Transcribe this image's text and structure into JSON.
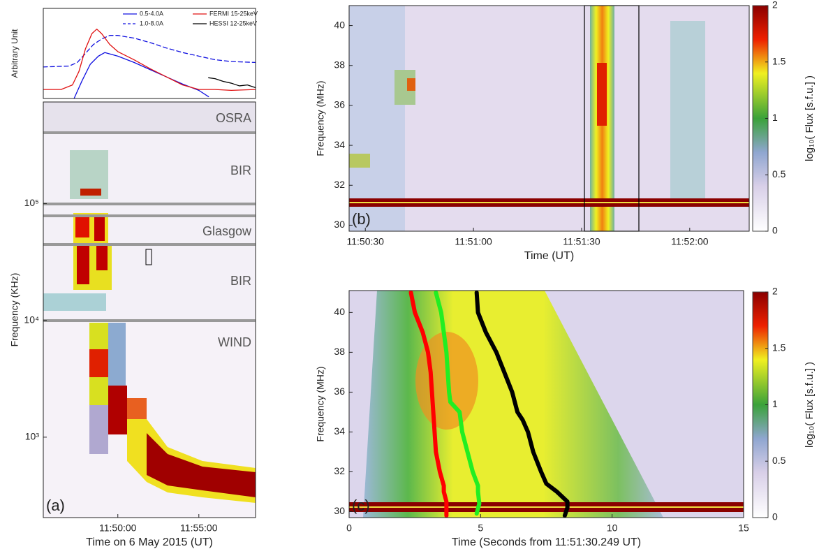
{
  "chart_data": [
    {
      "type": "line",
      "y_label": "Arbitrary Unit",
      "xlim": [
        45.4,
        58.5
      ],
      "ylim": [
        0,
        1
      ],
      "legend": "upper right",
      "series": [
        {
          "name": "0.5-4.0A",
          "color": "#1010e0",
          "line_style": "solid",
          "x": [
            47.3,
            47.8,
            48.3,
            48.8,
            49.2,
            50,
            51,
            52,
            53,
            54,
            55,
            55.6
          ],
          "values": [
            0,
            0.2,
            0.38,
            0.47,
            0.51,
            0.47,
            0.4,
            0.32,
            0.24,
            0.16,
            0.09,
            0.02
          ]
        },
        {
          "name": "1.0-8.0A",
          "color": "#1010e0",
          "line_style": "dashed",
          "x": [
            45.4,
            47,
            47.5,
            48,
            48.5,
            49,
            49.5,
            50,
            51,
            52,
            53,
            54,
            55,
            56,
            57,
            58.5
          ],
          "values": [
            0.35,
            0.36,
            0.4,
            0.5,
            0.6,
            0.66,
            0.7,
            0.7,
            0.67,
            0.62,
            0.56,
            0.51,
            0.47,
            0.43,
            0.41,
            0.4
          ]
        },
        {
          "name": "FERMI 15-25keV",
          "color": "#e01010",
          "line_style": "solid",
          "x": [
            45.4,
            46.5,
            47.2,
            47.6,
            48,
            48.4,
            48.7,
            49,
            49.5,
            50,
            51,
            52,
            53,
            54,
            55,
            56,
            57,
            58.5
          ],
          "values": [
            0.1,
            0.1,
            0.15,
            0.3,
            0.55,
            0.72,
            0.77,
            0.72,
            0.6,
            0.52,
            0.43,
            0.33,
            0.24,
            0.15,
            0.1,
            0.1,
            0.09,
            0.1
          ]
        },
        {
          "name": "HESSI 12-25keV",
          "color": "#000000",
          "line_style": "solid",
          "x": [
            55.6,
            56,
            56.5,
            57,
            57.5,
            58,
            58.5
          ],
          "values": [
            0.23,
            0.22,
            0.19,
            0.17,
            0.14,
            0.15,
            0.12
          ]
        }
      ]
    },
    {
      "type": "spectrogram",
      "panel_label": "(a)",
      "x_label": "Time on 6 May 2015 (UT)",
      "y_label": "Frequency (KHz)",
      "xlim": [
        45.4,
        58.5
      ],
      "xticks": [
        {
          "value": 50,
          "label": "11:50:00"
        },
        {
          "value": 55,
          "label": "11:55:00"
        }
      ],
      "ylim": [
        205,
        740000
      ],
      "log_y": true,
      "yticks": [
        {
          "value": 1000,
          "label": "10³"
        },
        {
          "value": 10000,
          "label": "10⁴"
        },
        {
          "value": 100000,
          "label": "10⁵"
        }
      ],
      "band_labels": [
        "OSRA",
        "BIR",
        "Glasgow",
        "BIR",
        "WIND"
      ]
    },
    {
      "type": "spectrogram",
      "panel_label": "(b)",
      "x_label": "Time (UT)",
      "y_label": "Frequency (MHz)",
      "xlim": [
        25.5,
        136.5
      ],
      "xticks": [
        {
          "value": 30,
          "label": "11:50:30"
        },
        {
          "value": 60,
          "label": "11:51:00"
        },
        {
          "value": 90,
          "label": "11:51:30"
        },
        {
          "value": 120,
          "label": "11:52:00"
        }
      ],
      "ylim": [
        29.7,
        41
      ],
      "yticks": [
        30,
        32,
        34,
        36,
        38,
        40
      ],
      "colorbar": {
        "label": "log₁₀( Flux [s.f.u.] )",
        "lim": [
          0,
          2
        ],
        "ticks": [
          0,
          0.5,
          1,
          1.5,
          2
        ]
      }
    },
    {
      "type": "spectrogram",
      "panel_label": "(c)",
      "x_label": "Time (Seconds from 11:51:30.249 UT)",
      "y_label": "Frequency (MHz)",
      "xlim": [
        0,
        15
      ],
      "xticks": [
        0,
        5,
        10,
        15
      ],
      "ylim": [
        29.7,
        41.1
      ],
      "yticks": [
        30,
        32,
        34,
        36,
        38,
        40
      ],
      "colorbar": {
        "label": "log₁₀( Flux [s.f.u.] )",
        "lim": [
          0,
          2
        ],
        "ticks": [
          0,
          0.5,
          1,
          1.5,
          2
        ]
      },
      "series": [
        {
          "color": "#ff0000",
          "x": [
            2.35,
            2.5,
            2.8,
            3.0,
            3.1,
            3.15,
            3.2,
            3.25,
            3.3,
            3.45,
            3.6,
            3.6,
            3.7,
            3.7
          ],
          "values": [
            41,
            40,
            39,
            38,
            37,
            36,
            35,
            34,
            33,
            32,
            31.3,
            31,
            30.5,
            29.8
          ]
        },
        {
          "color": "#22ee22",
          "x": [
            3.3,
            3.5,
            3.6,
            3.7,
            3.75,
            3.8,
            3.85,
            4.2,
            4.3,
            4.5,
            4.7,
            4.9,
            4.9,
            4.95,
            4.85
          ],
          "values": [
            41,
            40,
            39,
            38,
            37,
            36,
            35.5,
            35,
            34,
            33,
            32,
            31.3,
            31,
            30.4,
            29.9
          ]
        },
        {
          "color": "#000000",
          "x": [
            4.85,
            4.9,
            5.2,
            5.6,
            5.9,
            6.2,
            6.4,
            6.6,
            6.8,
            7.0,
            7.3,
            7.5,
            7.9,
            8.3,
            8.3,
            8.2
          ],
          "values": [
            41,
            40,
            39,
            38,
            37,
            36,
            35,
            34.6,
            34,
            33,
            32,
            31.4,
            31,
            30.5,
            30.2,
            29.8
          ]
        }
      ]
    }
  ]
}
